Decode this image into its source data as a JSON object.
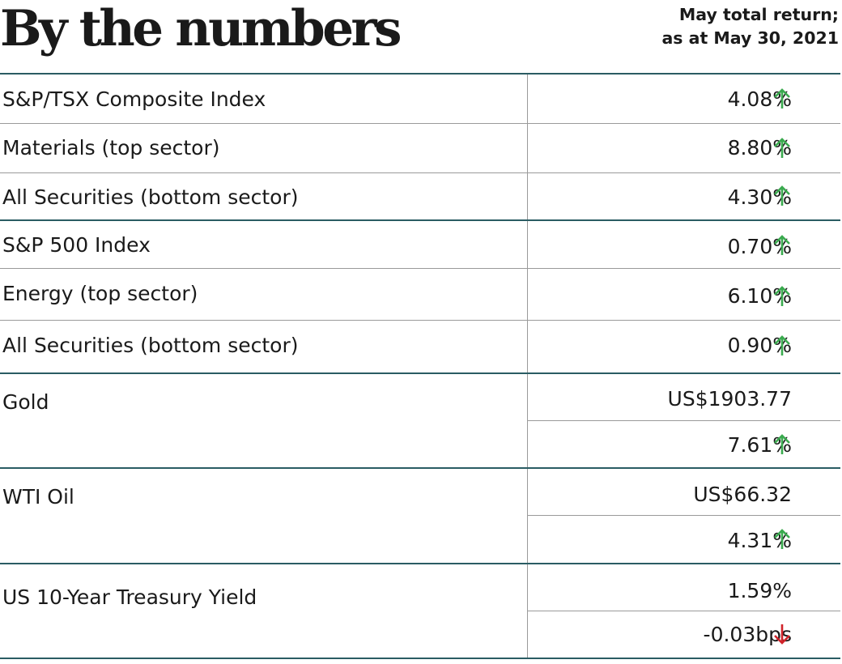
{
  "header": {
    "title": "By the numbers",
    "subtitle_line1": "May total return;",
    "subtitle_line2": "as at May 30, 2021"
  },
  "colors": {
    "up": "#3aaa4f",
    "down": "#d1232a",
    "rule": "#2a5c63",
    "divider": "#9a9a9a"
  },
  "rows": [
    {
      "label": "S&P/TSX Composite Index",
      "value": "4.08%",
      "direction": "up"
    },
    {
      "label": "Materials (top sector)",
      "value": "8.80%",
      "direction": "up"
    },
    {
      "label": "All Securities (bottom sector)",
      "value": "4.30%",
      "direction": "up"
    },
    {
      "label": "S&P 500 Index",
      "value": "0.70%",
      "direction": "up"
    },
    {
      "label": "Energy (top sector)",
      "value": "6.10%",
      "direction": "up"
    },
    {
      "label": "All Securities (bottom sector)",
      "value": "0.90%",
      "direction": "up"
    },
    {
      "label": "Gold",
      "price": "US$1903.77",
      "value": "7.61%",
      "direction": "up"
    },
    {
      "label": "WTI Oil",
      "price": "US$66.32",
      "value": "4.31%",
      "direction": "up"
    },
    {
      "label": "US 10-Year Treasury Yield",
      "price": "1.59%",
      "value": "-0.03bps",
      "direction": "down"
    }
  ]
}
